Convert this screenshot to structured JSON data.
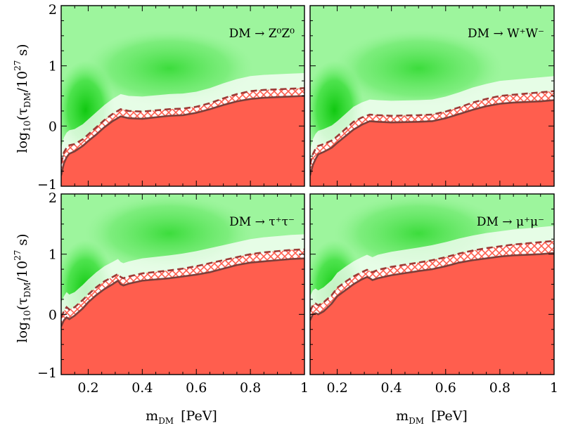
{
  "figure": {
    "ylabel_main": "log",
    "ylabel_sub": "10",
    "ylabel_rest": "(τ",
    "ylabel_tau_sub": "DM",
    "ylabel_mid": "/10",
    "ylabel_exp": "27",
    "ylabel_end": " s)",
    "xlabel_main": "m",
    "xlabel_sub": "DM",
    "xlabel_unit": "[PeV]"
  },
  "colors": {
    "excluded_fill": "#ff5e4e",
    "bound_line": "#7d3f3a",
    "dashed_line": "#9c3a36",
    "hatch": "#ff5e4e",
    "green": "#22d622"
  },
  "chart_data": [
    {
      "type": "area",
      "title": "DM → Z⁰Z⁰",
      "channel": "DM → Z⁰Z⁰",
      "xlim": [
        0.1,
        1.0
      ],
      "ylim": [
        -1,
        2
      ],
      "xticks": [
        "0.2",
        "0.4",
        "0.6",
        "0.8",
        "1"
      ],
      "yticks": [
        "−1",
        "0",
        "1",
        "2"
      ],
      "x": [
        0.1,
        0.11,
        0.12,
        0.13,
        0.15,
        0.18,
        0.2,
        0.23,
        0.26,
        0.29,
        0.32,
        0.35,
        0.4,
        0.5,
        0.55,
        0.6,
        0.65,
        0.7,
        0.75,
        0.8,
        0.85,
        0.9,
        0.95,
        1.0
      ],
      "lower_bound": [
        -0.82,
        -0.62,
        -0.52,
        -0.46,
        -0.42,
        -0.33,
        -0.25,
        -0.14,
        -0.02,
        0.08,
        0.16,
        0.13,
        0.12,
        0.17,
        0.18,
        0.22,
        0.28,
        0.35,
        0.41,
        0.45,
        0.47,
        0.48,
        0.49,
        0.5
      ],
      "upper_bound": [
        -0.62,
        -0.44,
        -0.36,
        -0.32,
        -0.3,
        -0.22,
        -0.14,
        -0.02,
        0.1,
        0.2,
        0.28,
        0.25,
        0.24,
        0.28,
        0.29,
        0.32,
        0.38,
        0.46,
        0.53,
        0.58,
        0.6,
        0.61,
        0.62,
        0.63
      ]
    },
    {
      "type": "area",
      "title": "DM → W⁺W⁻",
      "channel": "DM → W⁺W⁻",
      "xlim": [
        0.1,
        1.0
      ],
      "ylim": [
        -1,
        2
      ],
      "xticks": [
        "0.2",
        "0.4",
        "0.6",
        "0.8",
        "1"
      ],
      "yticks": [
        "−1",
        "0",
        "1",
        "2"
      ],
      "x": [
        0.1,
        0.11,
        0.12,
        0.13,
        0.15,
        0.18,
        0.2,
        0.23,
        0.26,
        0.29,
        0.32,
        0.35,
        0.4,
        0.5,
        0.55,
        0.6,
        0.65,
        0.7,
        0.75,
        0.8,
        0.85,
        0.9,
        0.95,
        1.0
      ],
      "lower_bound": [
        -0.82,
        -0.65,
        -0.55,
        -0.47,
        -0.43,
        -0.36,
        -0.28,
        -0.17,
        -0.06,
        0.02,
        0.08,
        0.07,
        0.06,
        0.07,
        0.08,
        0.13,
        0.2,
        0.27,
        0.33,
        0.37,
        0.39,
        0.4,
        0.41,
        0.43
      ],
      "upper_bound": [
        -0.64,
        -0.47,
        -0.38,
        -0.33,
        -0.3,
        -0.24,
        -0.17,
        -0.05,
        0.07,
        0.14,
        0.19,
        0.18,
        0.17,
        0.18,
        0.19,
        0.24,
        0.31,
        0.39,
        0.45,
        0.5,
        0.52,
        0.54,
        0.56,
        0.58
      ]
    },
    {
      "type": "area",
      "title": "DM → τ⁺τ⁻",
      "channel": "DM → τ⁺τ⁻",
      "xlim": [
        0.1,
        1.0
      ],
      "ylim": [
        -1,
        2
      ],
      "xticks": [
        "0.2",
        "0.4",
        "0.6",
        "0.8",
        "1"
      ],
      "yticks": [
        "−1",
        "0",
        "1",
        "2"
      ],
      "x": [
        0.1,
        0.11,
        0.12,
        0.13,
        0.15,
        0.18,
        0.2,
        0.23,
        0.26,
        0.29,
        0.31,
        0.32,
        0.33,
        0.35,
        0.4,
        0.5,
        0.55,
        0.6,
        0.65,
        0.7,
        0.75,
        0.8,
        0.85,
        0.9,
        0.95,
        1.0
      ],
      "lower_bound": [
        -0.2,
        -0.1,
        -0.05,
        -0.08,
        -0.02,
        0.1,
        0.2,
        0.32,
        0.42,
        0.5,
        0.56,
        0.5,
        0.48,
        0.51,
        0.56,
        0.6,
        0.63,
        0.66,
        0.7,
        0.76,
        0.82,
        0.86,
        0.88,
        0.9,
        0.92,
        0.93
      ],
      "upper_bound": [
        -0.05,
        0.05,
        0.12,
        0.08,
        0.12,
        0.24,
        0.33,
        0.45,
        0.55,
        0.62,
        0.67,
        0.62,
        0.6,
        0.63,
        0.68,
        0.73,
        0.76,
        0.8,
        0.85,
        0.9,
        0.95,
        1.0,
        1.03,
        1.05,
        1.07,
        1.08
      ]
    },
    {
      "type": "area",
      "title": "DM → μ⁺μ⁻",
      "channel": "DM → μ⁺μ⁻",
      "xlim": [
        0.1,
        1.0
      ],
      "ylim": [
        -1,
        2
      ],
      "xticks": [
        "0.2",
        "0.4",
        "0.6",
        "0.8",
        "1"
      ],
      "yticks": [
        "−1",
        "0",
        "1",
        "2"
      ],
      "x": [
        0.1,
        0.11,
        0.12,
        0.13,
        0.15,
        0.18,
        0.2,
        0.23,
        0.26,
        0.29,
        0.31,
        0.32,
        0.33,
        0.35,
        0.4,
        0.5,
        0.55,
        0.6,
        0.65,
        0.7,
        0.75,
        0.8,
        0.85,
        0.9,
        0.95,
        1.0
      ],
      "lower_bound": [
        -0.1,
        0.0,
        0.02,
        0.0,
        0.05,
        0.18,
        0.3,
        0.4,
        0.5,
        0.58,
        0.62,
        0.6,
        0.57,
        0.6,
        0.65,
        0.72,
        0.75,
        0.8,
        0.86,
        0.9,
        0.93,
        0.96,
        0.98,
        0.99,
        1.0,
        1.02
      ],
      "upper_bound": [
        0.05,
        0.15,
        0.18,
        0.15,
        0.2,
        0.32,
        0.44,
        0.54,
        0.63,
        0.7,
        0.74,
        0.72,
        0.7,
        0.74,
        0.79,
        0.86,
        0.9,
        0.95,
        1.01,
        1.06,
        1.1,
        1.13,
        1.16,
        1.18,
        1.2,
        1.22
      ]
    }
  ]
}
